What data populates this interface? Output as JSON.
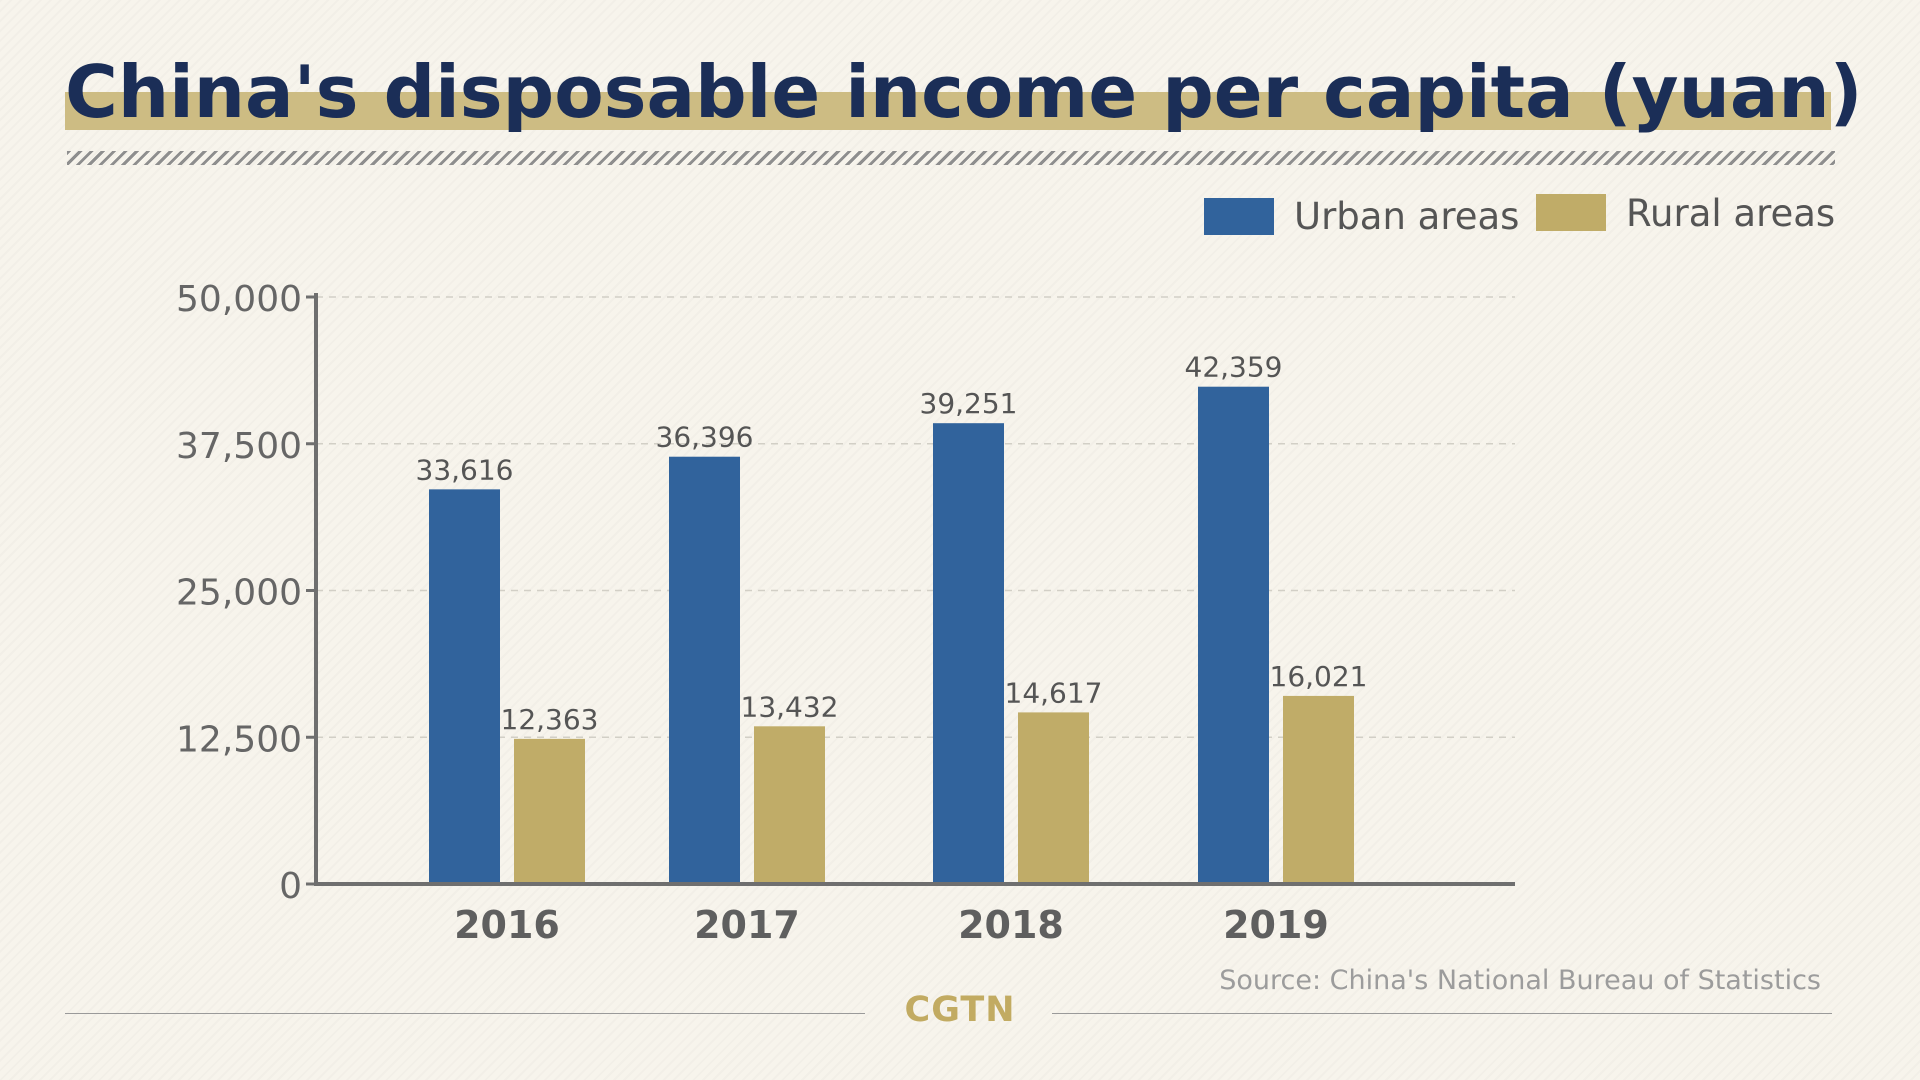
{
  "title": "China's disposable income per capita (yuan)",
  "source": "Source: China's National Bureau of Statistics",
  "logo": "CGTN",
  "colors": {
    "urban": "#31639c",
    "rural": "#c0ac68",
    "title": "#1b2e57",
    "title_band": "#cdbc83",
    "axis": "#6f6f6f",
    "grid": "#d2cfc6",
    "background": "#f7f4ec"
  },
  "chart_data": {
    "type": "bar",
    "categories": [
      "2016",
      "2017",
      "2018",
      "2019"
    ],
    "series": [
      {
        "name": "Urban areas",
        "values": [
          33616,
          36396,
          39251,
          42359
        ],
        "labels": [
          "33,616",
          "36,396",
          "39,251",
          "42,359"
        ]
      },
      {
        "name": "Rural areas",
        "values": [
          12363,
          13432,
          14617,
          16021
        ],
        "labels": [
          "12,363",
          "13,432",
          "14,617",
          "16,021"
        ]
      }
    ],
    "yticks": [
      0,
      12500,
      25000,
      37500,
      50000
    ],
    "ytick_labels": [
      "0",
      "12,500",
      "25,000",
      "37,500",
      "50,000"
    ],
    "ylim": [
      0,
      50000
    ],
    "grid": true,
    "legend": "top-right"
  }
}
